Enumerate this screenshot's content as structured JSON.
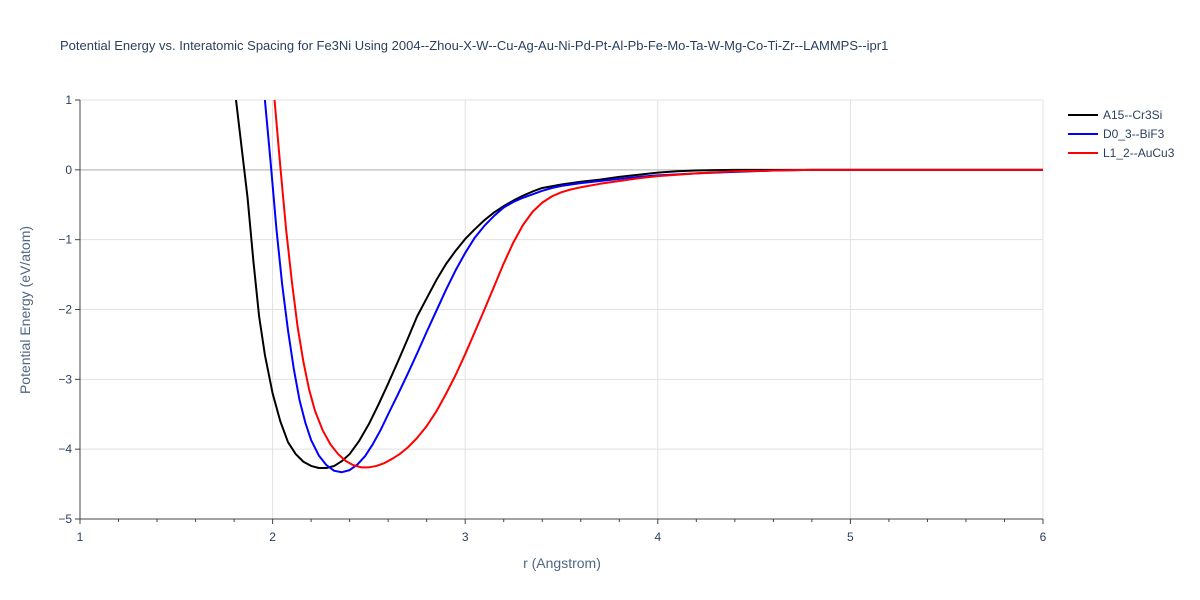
{
  "chart_data": {
    "type": "line",
    "title": "Potential Energy vs. Interatomic Spacing for Fe3Ni Using 2004--Zhou-X-W--Cu-Ag-Au-Ni-Pd-Pt-Al-Pb-Fe-Mo-Ta-W-Mg-Co-Ti-Zr--LAMMPS--ipr1",
    "xlabel": "r (Angstrom)",
    "ylabel": "Potential Energy (eV/atom)",
    "xlim": [
      1,
      6
    ],
    "ylim": [
      -5,
      1
    ],
    "xticks": [
      1,
      2,
      3,
      4,
      5,
      6
    ],
    "yticks": [
      -5,
      -4,
      -3,
      -2,
      -1,
      0,
      1
    ],
    "x_tick_labels": [
      "1",
      "2",
      "3",
      "4",
      "5",
      "6"
    ],
    "y_tick_labels": [
      "−5",
      "−4",
      "−3",
      "−2",
      "−1",
      "0",
      "1"
    ],
    "grid": true,
    "legend_position": "top-right",
    "series": [
      {
        "name": "A15--Cr3Si",
        "color": "#000000",
        "x": [
          1.81,
          1.84,
          1.87,
          1.9,
          1.93,
          1.96,
          2.0,
          2.04,
          2.08,
          2.12,
          2.16,
          2.2,
          2.24,
          2.28,
          2.32,
          2.36,
          2.4,
          2.45,
          2.5,
          2.55,
          2.6,
          2.65,
          2.7,
          2.75,
          2.8,
          2.85,
          2.9,
          2.95,
          3.0,
          3.05,
          3.1,
          3.15,
          3.2,
          3.25,
          3.3,
          3.35,
          3.4,
          3.5,
          3.6,
          3.7,
          3.8,
          3.9,
          4.0,
          4.1,
          4.2,
          4.3,
          4.4,
          4.5,
          4.6,
          4.7,
          4.8,
          5.0,
          5.5,
          6.0
        ],
        "y": [
          1.0,
          0.3,
          -0.4,
          -1.3,
          -2.1,
          -2.65,
          -3.2,
          -3.6,
          -3.9,
          -4.07,
          -4.18,
          -4.24,
          -4.27,
          -4.27,
          -4.24,
          -4.17,
          -4.07,
          -3.88,
          -3.64,
          -3.36,
          -3.06,
          -2.75,
          -2.43,
          -2.1,
          -1.84,
          -1.58,
          -1.35,
          -1.16,
          -0.99,
          -0.85,
          -0.72,
          -0.61,
          -0.52,
          -0.44,
          -0.37,
          -0.31,
          -0.26,
          -0.21,
          -0.17,
          -0.14,
          -0.1,
          -0.07,
          -0.04,
          -0.02,
          -0.01,
          -0.005,
          0.0,
          0.0,
          0.0,
          0.0,
          0.0,
          0.0,
          0.0,
          0.0
        ]
      },
      {
        "name": "D0_3--BiF3",
        "color": "#0000ff",
        "x": [
          1.96,
          1.99,
          2.02,
          2.05,
          2.08,
          2.11,
          2.14,
          2.17,
          2.2,
          2.24,
          2.28,
          2.32,
          2.36,
          2.4,
          2.44,
          2.48,
          2.52,
          2.56,
          2.6,
          2.65,
          2.7,
          2.75,
          2.8,
          2.85,
          2.9,
          2.95,
          3.0,
          3.05,
          3.1,
          3.15,
          3.2,
          3.25,
          3.3,
          3.35,
          3.4,
          3.45,
          3.5,
          3.55,
          3.6,
          3.7,
          3.8,
          3.9,
          4.0,
          4.2,
          4.4,
          4.6,
          4.8,
          5.0,
          5.5,
          6.0
        ],
        "y": [
          1.0,
          0.1,
          -0.85,
          -1.65,
          -2.3,
          -2.85,
          -3.3,
          -3.62,
          -3.87,
          -4.09,
          -4.23,
          -4.31,
          -4.33,
          -4.3,
          -4.22,
          -4.1,
          -3.93,
          -3.73,
          -3.5,
          -3.22,
          -2.93,
          -2.63,
          -2.32,
          -2.02,
          -1.72,
          -1.44,
          -1.19,
          -0.97,
          -0.8,
          -0.66,
          -0.54,
          -0.46,
          -0.4,
          -0.35,
          -0.3,
          -0.26,
          -0.23,
          -0.21,
          -0.19,
          -0.16,
          -0.13,
          -0.1,
          -0.08,
          -0.05,
          -0.03,
          -0.01,
          0.0,
          0.0,
          0.0,
          0.0
        ]
      },
      {
        "name": "L1_2--AuCu3",
        "color": "#ff0000",
        "x": [
          2.01,
          2.04,
          2.07,
          2.1,
          2.13,
          2.16,
          2.19,
          2.22,
          2.26,
          2.3,
          2.34,
          2.38,
          2.42,
          2.46,
          2.5,
          2.54,
          2.58,
          2.62,
          2.66,
          2.7,
          2.75,
          2.8,
          2.85,
          2.9,
          2.95,
          3.0,
          3.05,
          3.1,
          3.15,
          3.2,
          3.25,
          3.3,
          3.35,
          3.4,
          3.45,
          3.5,
          3.55,
          3.6,
          3.7,
          3.8,
          3.9,
          4.0,
          4.2,
          4.4,
          4.6,
          4.8,
          5.0,
          5.5,
          6.0
        ],
        "y": [
          1.0,
          0.05,
          -0.85,
          -1.6,
          -2.25,
          -2.75,
          -3.15,
          -3.45,
          -3.73,
          -3.93,
          -4.07,
          -4.17,
          -4.23,
          -4.26,
          -4.26,
          -4.24,
          -4.2,
          -4.14,
          -4.07,
          -3.98,
          -3.84,
          -3.67,
          -3.46,
          -3.21,
          -2.94,
          -2.64,
          -2.32,
          -2.0,
          -1.67,
          -1.34,
          -1.04,
          -0.79,
          -0.6,
          -0.47,
          -0.38,
          -0.32,
          -0.28,
          -0.25,
          -0.2,
          -0.16,
          -0.12,
          -0.09,
          -0.05,
          -0.02,
          -0.01,
          0.0,
          0.0,
          0.0,
          0.0
        ]
      }
    ]
  }
}
